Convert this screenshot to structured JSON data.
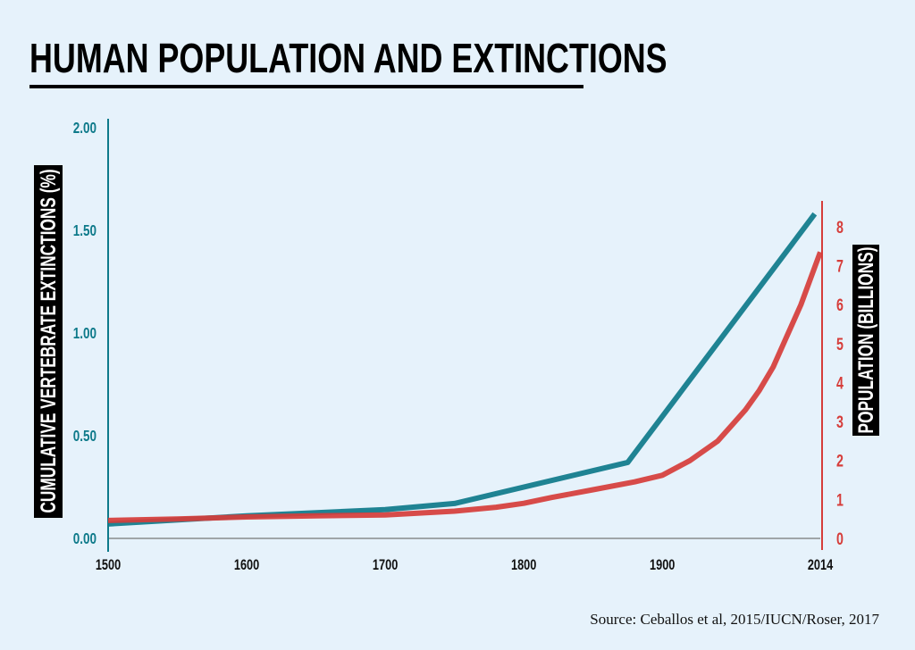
{
  "chart_data": {
    "type": "line",
    "title": "HUMAN POPULATION AND EXTINCTIONS",
    "source": "Source: Ceballos et al, 2015/IUCN/Roser, 2017",
    "x_ticks": [
      "1500",
      "1600",
      "1700",
      "1800",
      "1900",
      "2014"
    ],
    "x_tick_values": [
      1500,
      1600,
      1700,
      1800,
      1900,
      2014
    ],
    "xlim": [
      1500,
      2014
    ],
    "y_left": {
      "label": "CUMULATIVE VERTEBRATE EXTINCTIONS (%)",
      "ticks": [
        "0.00",
        "0.50",
        "1.00",
        "1.50",
        "2.00"
      ],
      "tick_values": [
        0,
        0.5,
        1,
        1.5,
        2
      ],
      "ylim": [
        0,
        2.0
      ],
      "color": "#0e7a8a"
    },
    "y_right": {
      "label": "POPULATION (BILLIONS)",
      "ticks": [
        "0",
        "1",
        "2",
        "3",
        "4",
        "5",
        "6",
        "7",
        "8"
      ],
      "tick_values": [
        0,
        1,
        2,
        3,
        4,
        5,
        6,
        7,
        8
      ],
      "ylim": [
        0,
        8
      ],
      "color": "#d63d3a"
    },
    "grid": false,
    "series": [
      {
        "axis": "left",
        "color": "#0e7a8a",
        "x": [
          1500,
          1600,
          1700,
          1750,
          1875,
          2010
        ],
        "y": [
          0.07,
          0.11,
          0.14,
          0.17,
          0.37,
          1.58
        ]
      },
      {
        "axis": "right",
        "color": "#d63d3a",
        "x": [
          1500,
          1550,
          1600,
          1650,
          1700,
          1750,
          1780,
          1800,
          1820,
          1850,
          1880,
          1900,
          1920,
          1940,
          1950,
          1960,
          1970,
          1980,
          1990,
          2000,
          2014
        ],
        "y": [
          0.46,
          0.5,
          0.55,
          0.58,
          0.6,
          0.7,
          0.8,
          0.9,
          1.05,
          1.25,
          1.45,
          1.62,
          2.0,
          2.5,
          2.9,
          3.3,
          3.8,
          4.4,
          5.2,
          6.0,
          7.35
        ]
      }
    ]
  }
}
